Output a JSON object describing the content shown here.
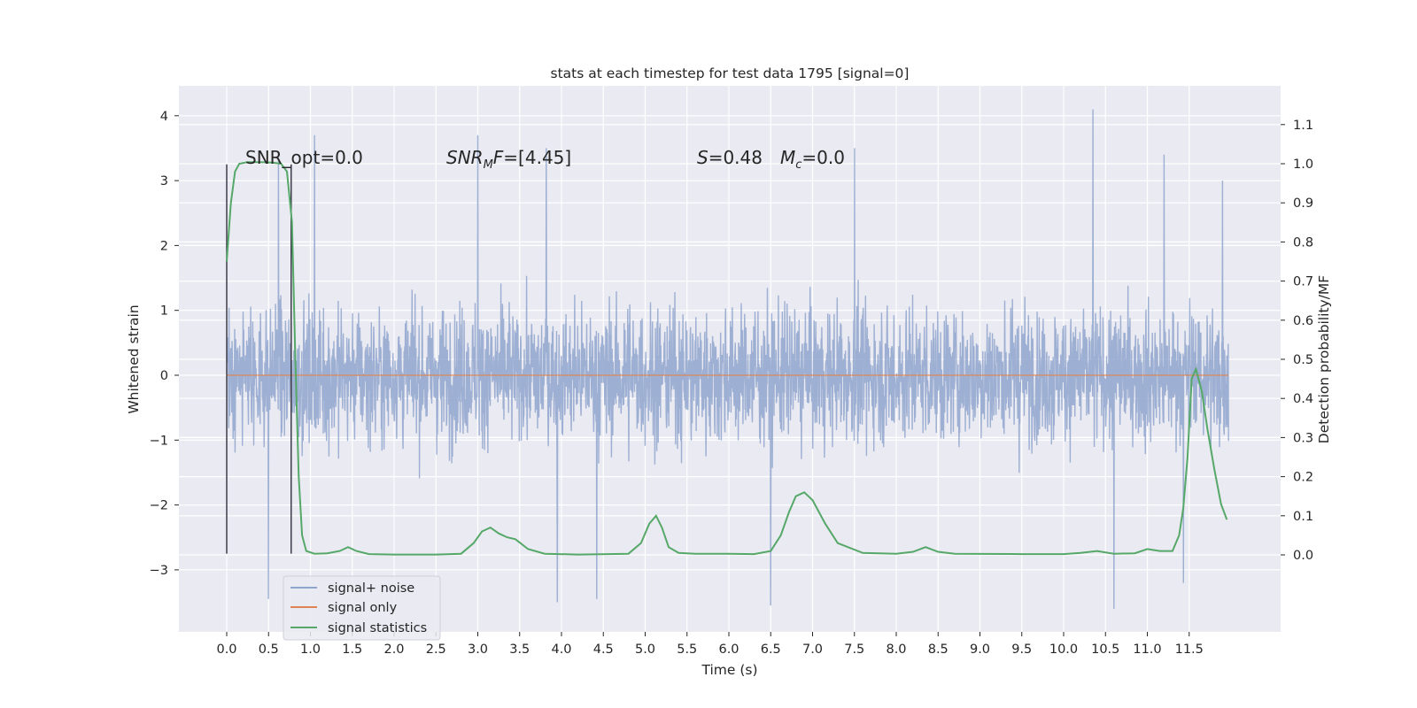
{
  "chart_data": {
    "type": "line",
    "title": "stats at each timestep for test data 1795 [signal=0]",
    "xlabel": "Time (s)",
    "ylabel": "Whitened strain",
    "ylabel_right": "Detection probability/MF",
    "xlim": [
      -0.5,
      12.7
    ],
    "ylim": [
      -3.95,
      4.45
    ],
    "ylim_right": [
      -0.2,
      1.19
    ],
    "x_ticks": [
      0.0,
      0.5,
      1.0,
      1.5,
      2.0,
      2.5,
      3.0,
      3.5,
      4.0,
      4.5,
      5.0,
      5.5,
      6.0,
      6.5,
      7.0,
      7.5,
      8.0,
      8.5,
      9.0,
      9.5,
      10.0,
      10.5,
      11.0,
      11.5
    ],
    "x_tick_labels": [
      "0.0",
      "0.5",
      "1.0",
      "1.5",
      "2.0",
      "2.5",
      "3.0",
      "3.5",
      "4.0",
      "4.5",
      "5.0",
      "5.5",
      "6.0",
      "6.5",
      "7.0",
      "7.5",
      "8.0",
      "8.5",
      "9.0",
      "9.5",
      "10.0",
      "10.5",
      "11.0",
      "11.5"
    ],
    "y_ticks": [
      -3,
      -2,
      -1,
      0,
      1,
      2,
      3,
      4
    ],
    "y_tick_labels": [
      "−3",
      "−2",
      "−1",
      "0",
      "1",
      "2",
      "3",
      "4"
    ],
    "y_ticks_right": [
      0.0,
      0.1,
      0.2,
      0.3,
      0.4,
      0.5,
      0.6,
      0.7,
      0.8,
      0.9,
      1.0,
      1.1
    ],
    "y_tick_labels_right": [
      "0.0",
      "0.1",
      "0.2",
      "0.3",
      "0.4",
      "0.5",
      "0.6",
      "0.7",
      "0.8",
      "0.9",
      "1.0",
      "1.1"
    ],
    "grid": true,
    "legend_position": "lower-left",
    "annotations": [
      {
        "text": "SNR_opt=0.0"
      },
      {
        "text_main": "SNR",
        "text_sub": "M",
        "text_rest": "F=[4.45]"
      },
      {
        "text_main": "S",
        "text_rest": "=0.48"
      },
      {
        "text_main": "M",
        "text_sub": "c",
        "text_rest": "=0.0"
      }
    ],
    "vertical_lines_x": [
      0.0,
      0.77
    ],
    "series": [
      {
        "name": "signal+ noise",
        "color": "#8fa4cc",
        "x_range": [
          0.0,
          11.97
        ],
        "amplitude_envelope": [
          -3.5,
          4.1
        ],
        "typical_upper": 2.0,
        "typical_lower": -2.0,
        "peaks": [
          [
            0.62,
            3.45
          ],
          [
            1.05,
            3.7
          ],
          [
            3.0,
            3.7
          ],
          [
            3.82,
            3.5
          ],
          [
            7.5,
            3.5
          ],
          [
            10.35,
            4.1
          ],
          [
            11.2,
            3.4
          ],
          [
            11.9,
            3.0
          ]
        ],
        "troughs": [
          [
            0.5,
            -3.45
          ],
          [
            3.95,
            -3.5
          ],
          [
            4.42,
            -3.45
          ],
          [
            6.5,
            -3.55
          ],
          [
            10.6,
            -3.6
          ],
          [
            11.43,
            -3.2
          ]
        ]
      },
      {
        "name": "signal only",
        "color": "#dd8452",
        "x": [
          0.0,
          11.97
        ],
        "y": [
          0.0,
          0.0
        ]
      },
      {
        "name": "signal statistics",
        "color": "#55a868",
        "axis": "right",
        "x": [
          0.0,
          0.05,
          0.1,
          0.15,
          0.25,
          0.4,
          0.55,
          0.65,
          0.72,
          0.78,
          0.82,
          0.86,
          0.9,
          0.95,
          1.05,
          1.2,
          1.35,
          1.45,
          1.55,
          1.7,
          2.0,
          2.5,
          2.8,
          2.95,
          3.05,
          3.15,
          3.25,
          3.35,
          3.45,
          3.6,
          3.8,
          4.2,
          4.8,
          4.95,
          5.05,
          5.13,
          5.2,
          5.28,
          5.4,
          5.6,
          6.0,
          6.3,
          6.5,
          6.62,
          6.72,
          6.8,
          6.9,
          7.0,
          7.15,
          7.3,
          7.6,
          8.0,
          8.2,
          8.35,
          8.5,
          8.7,
          9.5,
          10.0,
          10.2,
          10.4,
          10.6,
          10.85,
          11.0,
          11.15,
          11.3,
          11.38,
          11.43,
          11.48,
          11.53,
          11.58,
          11.65,
          11.72,
          11.8,
          11.88,
          11.95
        ],
        "y": [
          0.75,
          0.9,
          0.98,
          1.0,
          1.004,
          1.004,
          1.003,
          1.0,
          0.98,
          0.85,
          0.5,
          0.2,
          0.05,
          0.01,
          0.003,
          0.004,
          0.01,
          0.02,
          0.01,
          0.002,
          0.001,
          0.001,
          0.003,
          0.03,
          0.06,
          0.07,
          0.055,
          0.045,
          0.04,
          0.015,
          0.003,
          0.001,
          0.003,
          0.03,
          0.08,
          0.1,
          0.07,
          0.02,
          0.005,
          0.003,
          0.003,
          0.002,
          0.01,
          0.05,
          0.11,
          0.15,
          0.16,
          0.14,
          0.08,
          0.03,
          0.005,
          0.003,
          0.008,
          0.02,
          0.008,
          0.003,
          0.002,
          0.002,
          0.005,
          0.01,
          0.003,
          0.004,
          0.015,
          0.01,
          0.01,
          0.05,
          0.12,
          0.25,
          0.45,
          0.475,
          0.42,
          0.32,
          0.22,
          0.13,
          0.09
        ]
      }
    ]
  }
}
